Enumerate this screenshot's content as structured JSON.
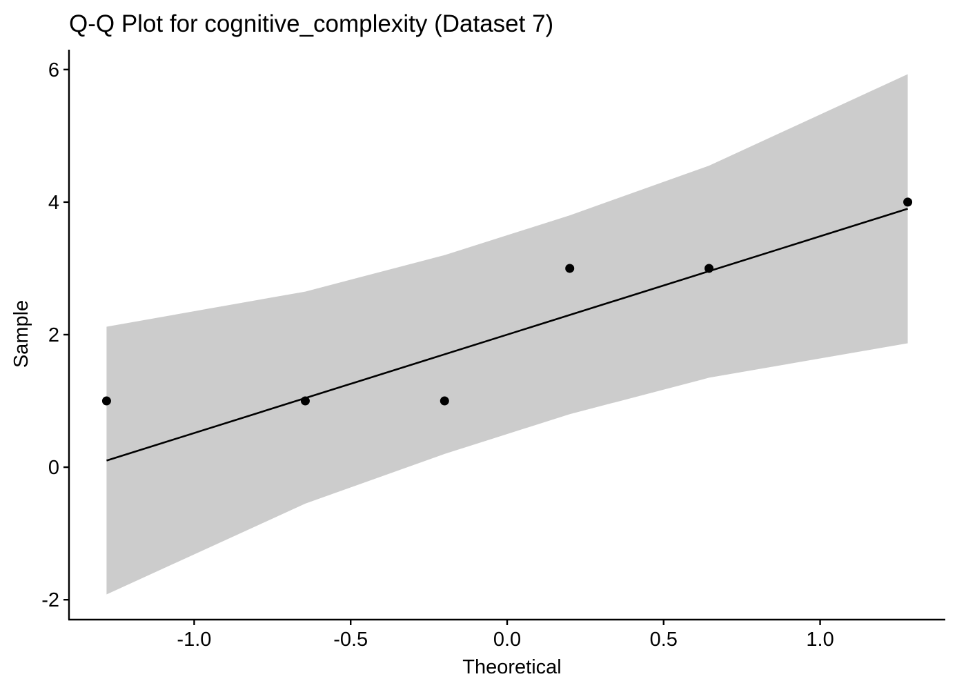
{
  "chart_data": {
    "type": "scatter",
    "title": "Q-Q Plot for cognitive_complexity (Dataset 7)",
    "xlabel": "Theoretical",
    "ylabel": "Sample",
    "xlim": [
      -1.4,
      1.4
    ],
    "ylim": [
      -2.3,
      6.3
    ],
    "x_ticks": [
      -1.0,
      -0.5,
      0.0,
      0.5,
      1.0
    ],
    "x_tick_labels": [
      "-1.0",
      "-0.5",
      "0.0",
      "0.5",
      "1.0"
    ],
    "y_ticks": [
      -2,
      0,
      2,
      4,
      6
    ],
    "y_tick_labels": [
      "-2",
      "0",
      "2",
      "4",
      "6"
    ],
    "grid": false,
    "legend": "none",
    "points": [
      {
        "x": -1.28,
        "y": 1
      },
      {
        "x": -0.645,
        "y": 1
      },
      {
        "x": -0.2,
        "y": 1
      },
      {
        "x": 0.2,
        "y": 3
      },
      {
        "x": 0.645,
        "y": 3
      },
      {
        "x": 1.28,
        "y": 4
      }
    ],
    "reference_line": [
      {
        "x": -1.28,
        "y": 0.1
      },
      {
        "x": 1.28,
        "y": 3.9
      }
    ],
    "confidence_band": [
      {
        "x": -1.28,
        "lower": -1.92,
        "upper": 2.12
      },
      {
        "x": -0.645,
        "lower": -0.55,
        "upper": 2.65
      },
      {
        "x": -0.2,
        "lower": 0.2,
        "upper": 3.2
      },
      {
        "x": 0.2,
        "lower": 0.8,
        "upper": 3.8
      },
      {
        "x": 0.645,
        "lower": 1.35,
        "upper": 4.55
      },
      {
        "x": 1.28,
        "lower": 1.87,
        "upper": 5.93
      }
    ],
    "colors": {
      "points": "#000000",
      "line": "#000000",
      "band": "#cccccc",
      "axis": "#000000"
    }
  }
}
